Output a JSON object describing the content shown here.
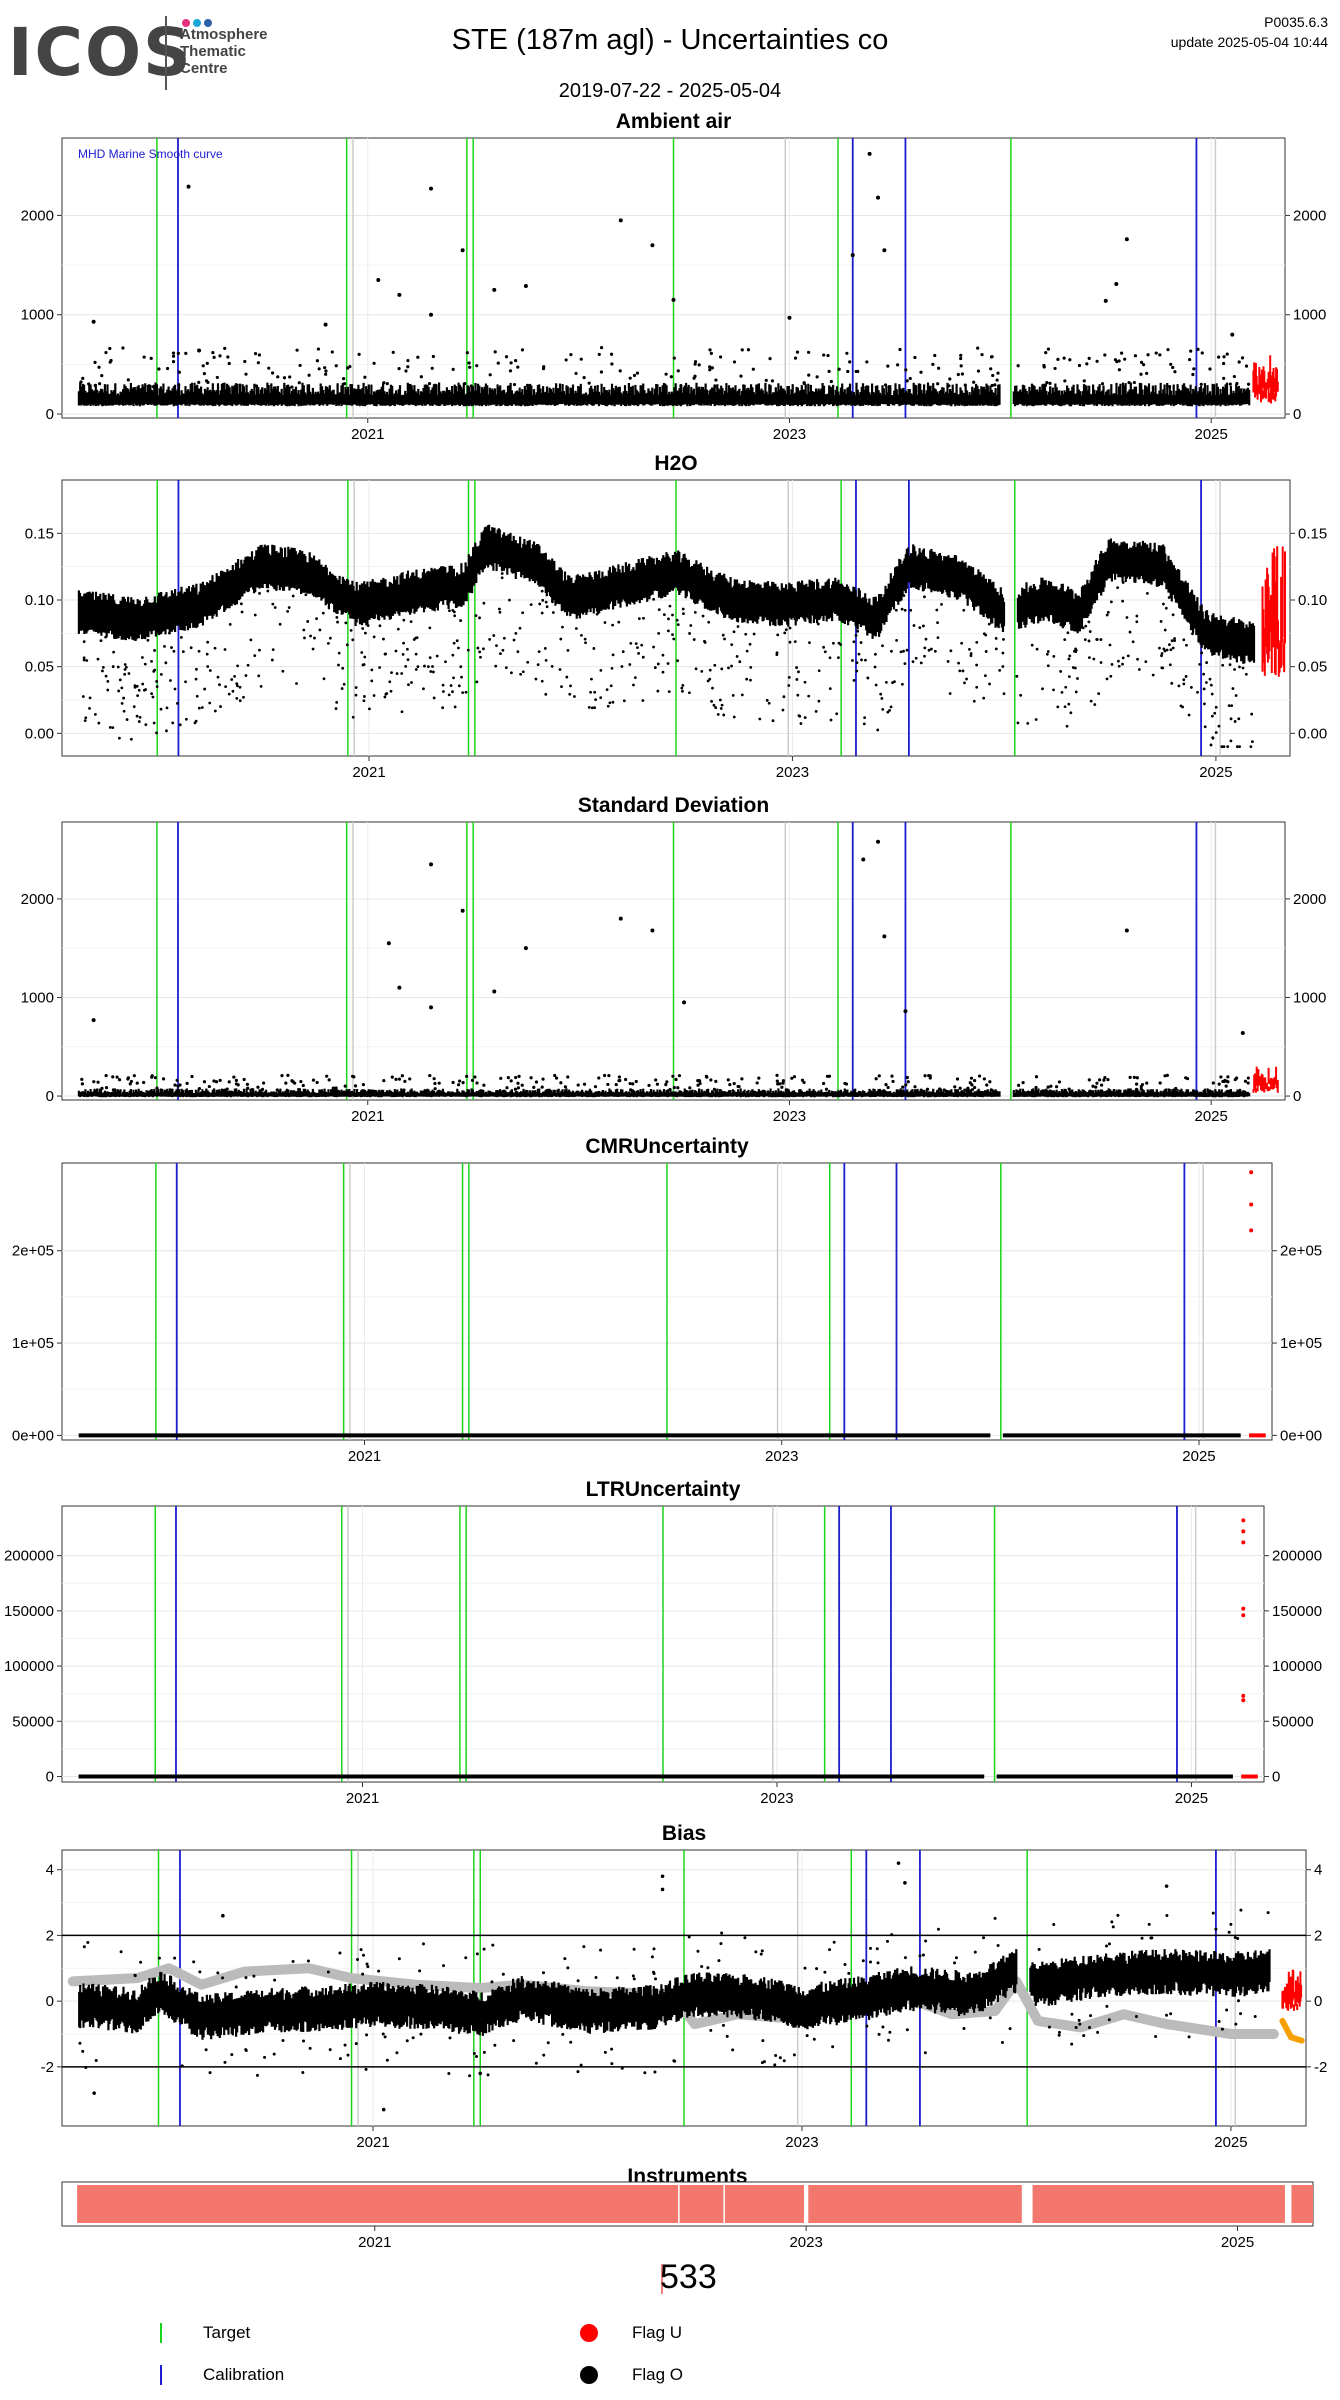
{
  "header": {
    "logo_text": "ICOS",
    "logo_sub": [
      "Atmosphere",
      "Thematic",
      "Centre"
    ],
    "title": "STE  (187m agl) - Uncertainties co",
    "date_range": "2019-07-22 - 2025-05-04",
    "code": "P0035.6.3",
    "update": "update  2025-05-04 10:44",
    "dot_colors": [
      "#e6317e",
      "#1aa7d9",
      "#2b5fa8"
    ]
  },
  "chart_data": [
    {
      "type": "scatter",
      "title": "Ambient air",
      "annotation": "MHD Marine Smooth curve",
      "xlim": [
        2019.55,
        2025.35
      ],
      "ylim": [
        -40,
        2780
      ],
      "yticks": [
        0,
        1000,
        2000
      ],
      "ytick_labels": [
        "0",
        "1000",
        "2000"
      ],
      "xticks": [
        2021,
        2023,
        2025
      ],
      "baseline": 150,
      "noise": 80,
      "spikes": [
        [
          2019.7,
          930
        ],
        [
          2020.15,
          2290
        ],
        [
          2020.2,
          640
        ],
        [
          2020.8,
          900
        ],
        [
          2021.05,
          1350
        ],
        [
          2021.15,
          1200
        ],
        [
          2021.3,
          1000
        ],
        [
          2021.3,
          2270
        ],
        [
          2021.45,
          1650
        ],
        [
          2021.6,
          1250
        ],
        [
          2021.75,
          1290
        ],
        [
          2022.2,
          1950
        ],
        [
          2022.35,
          1700
        ],
        [
          2022.45,
          1150
        ],
        [
          2023.0,
          970
        ],
        [
          2023.3,
          1600
        ],
        [
          2023.38,
          2620
        ],
        [
          2023.42,
          2180
        ],
        [
          2023.45,
          1650
        ],
        [
          2024.6,
          1760
        ],
        [
          2024.55,
          1310
        ],
        [
          2024.5,
          1140
        ],
        [
          2025.1,
          800
        ]
      ],
      "red_region": [
        2025.2,
        2025.32,
        50,
        600
      ],
      "gaps": [
        [
          2024.0,
          2024.06
        ]
      ],
      "series": [
        {
          "values": []
        }
      ]
    },
    {
      "type": "scatter",
      "title": "H2O",
      "xlim": [
        2019.55,
        2025.35
      ],
      "ylim": [
        -0.017,
        0.19
      ],
      "yticks": [
        0,
        0.05,
        0.1,
        0.15
      ],
      "ytick_labels": [
        "0.00",
        "0.05",
        "0.10",
        "0.15"
      ],
      "xticks": [
        2021,
        2023,
        2025
      ],
      "curve": [
        [
          2019.6,
          0.09
        ],
        [
          2019.9,
          0.085
        ],
        [
          2020.2,
          0.095
        ],
        [
          2020.5,
          0.125
        ],
        [
          2020.7,
          0.12
        ],
        [
          2020.95,
          0.095
        ],
        [
          2021.2,
          0.105
        ],
        [
          2021.45,
          0.11
        ],
        [
          2021.55,
          0.14
        ],
        [
          2021.8,
          0.125
        ],
        [
          2021.95,
          0.1
        ],
        [
          2022.2,
          0.11
        ],
        [
          2022.45,
          0.12
        ],
        [
          2022.7,
          0.1
        ],
        [
          2022.95,
          0.095
        ],
        [
          2023.2,
          0.1
        ],
        [
          2023.4,
          0.085
        ],
        [
          2023.55,
          0.125
        ],
        [
          2023.8,
          0.115
        ],
        [
          2024.0,
          0.09
        ],
        [
          2024.2,
          0.1
        ],
        [
          2024.35,
          0.09
        ],
        [
          2024.5,
          0.13
        ],
        [
          2024.75,
          0.125
        ],
        [
          2024.95,
          0.075
        ],
        [
          2025.2,
          0.065
        ]
      ],
      "red_region": [
        2025.22,
        2025.33,
        0.03,
        0.15
      ],
      "gaps": [
        [
          2024.0,
          2024.06
        ]
      ],
      "series": [
        {
          "values": []
        }
      ]
    },
    {
      "type": "scatter",
      "title": "Standard Deviation",
      "xlim": [
        2019.55,
        2025.35
      ],
      "ylim": [
        -40,
        2780
      ],
      "yticks": [
        0,
        1000,
        2000
      ],
      "ytick_labels": [
        "0",
        "1000",
        "2000"
      ],
      "xticks": [
        2021,
        2023,
        2025
      ],
      "baseline": 15,
      "noise": 30,
      "spikes": [
        [
          2019.7,
          770
        ],
        [
          2021.1,
          1550
        ],
        [
          2021.15,
          1100
        ],
        [
          2021.3,
          2350
        ],
        [
          2021.45,
          1880
        ],
        [
          2021.3,
          900
        ],
        [
          2021.6,
          1060
        ],
        [
          2021.75,
          1500
        ],
        [
          2022.2,
          1800
        ],
        [
          2022.35,
          1680
        ],
        [
          2022.5,
          950
        ],
        [
          2023.35,
          2400
        ],
        [
          2023.42,
          2580
        ],
        [
          2023.45,
          1620
        ],
        [
          2023.55,
          860
        ],
        [
          2024.6,
          1680
        ],
        [
          2025.15,
          640
        ]
      ],
      "red_region": [
        2025.2,
        2025.32,
        0,
        330
      ],
      "gaps": [
        [
          2024.0,
          2024.06
        ]
      ],
      "series": [
        {
          "values": []
        }
      ]
    },
    {
      "type": "scatter",
      "title": "CMRUncertainty",
      "xlim": [
        2019.55,
        2025.35
      ],
      "ylim": [
        -5000,
        295000
      ],
      "yticks": [
        0,
        100000,
        200000
      ],
      "ytick_labels": [
        "0e+00",
        "1e+05",
        "2e+05"
      ],
      "xticks": [
        2021,
        2023,
        2025
      ],
      "flat": 0,
      "red_points": [
        [
          2025.25,
          285000
        ],
        [
          2025.25,
          250000
        ],
        [
          2025.25,
          222000
        ]
      ],
      "red_flat": [
        2025.24,
        2025.32
      ],
      "gaps": [
        [
          2024.0,
          2024.06
        ]
      ],
      "series": [
        {
          "values": []
        }
      ]
    },
    {
      "type": "scatter",
      "title": "LTRUncertainty",
      "xlim": [
        2019.55,
        2025.35
      ],
      "ylim": [
        -5000,
        245000
      ],
      "yticks": [
        0,
        50000,
        100000,
        150000,
        200000
      ],
      "ytick_labels": [
        "0",
        "50000",
        "100000",
        "150000",
        "200000"
      ],
      "xticks": [
        2021,
        2023,
        2025
      ],
      "flat": 0,
      "red_points": [
        [
          2025.25,
          232000
        ],
        [
          2025.25,
          222000
        ],
        [
          2025.25,
          212000
        ],
        [
          2025.25,
          152000
        ],
        [
          2025.25,
          146000
        ],
        [
          2025.25,
          73000
        ],
        [
          2025.25,
          69000
        ]
      ],
      "red_flat": [
        2025.24,
        2025.32
      ],
      "gaps": [
        [
          2024.0,
          2024.06
        ]
      ],
      "series": [
        {
          "values": []
        }
      ]
    },
    {
      "type": "scatter",
      "title": "Bias",
      "xlim": [
        2019.55,
        2025.35
      ],
      "ylim": [
        -3.8,
        4.6
      ],
      "yticks": [
        -2,
        0,
        2,
        4
      ],
      "ytick_labels": [
        "-2",
        "0",
        "2",
        "4"
      ],
      "xticks": [
        2021,
        2023,
        2025
      ],
      "hlines": [
        -2,
        2
      ],
      "black_curve": [
        [
          2019.6,
          -0.1
        ],
        [
          2019.9,
          -0.3
        ],
        [
          2020.0,
          0.3
        ],
        [
          2020.2,
          -0.5
        ],
        [
          2020.5,
          -0.3
        ],
        [
          2020.8,
          -0.2
        ],
        [
          2021.0,
          -0.1
        ],
        [
          2021.3,
          -0.2
        ],
        [
          2021.5,
          -0.4
        ],
        [
          2021.7,
          0.1
        ],
        [
          2022.0,
          -0.3
        ],
        [
          2022.3,
          -0.2
        ],
        [
          2022.5,
          0.2
        ],
        [
          2022.8,
          0.1
        ],
        [
          2023.0,
          -0.2
        ],
        [
          2023.3,
          0.1
        ],
        [
          2023.5,
          0.4
        ],
        [
          2023.8,
          0.2
        ],
        [
          2024.0,
          0.9
        ],
        [
          2024.1,
          0.5
        ],
        [
          2024.4,
          0.8
        ],
        [
          2024.7,
          0.9
        ],
        [
          2025.0,
          0.8
        ],
        [
          2025.15,
          0.9
        ]
      ],
      "grey_curve": [
        [
          2019.6,
          0.6
        ],
        [
          2019.9,
          0.7
        ],
        [
          2020.05,
          1.0
        ],
        [
          2020.2,
          0.5
        ],
        [
          2020.4,
          0.9
        ],
        [
          2020.7,
          1.0
        ],
        [
          2020.9,
          0.7
        ],
        [
          2021.2,
          0.5
        ],
        [
          2021.5,
          0.4
        ],
        [
          2021.7,
          0.5
        ],
        [
          2022.0,
          0.3
        ],
        [
          2022.4,
          0.2
        ],
        [
          2022.5,
          -0.7
        ],
        [
          2022.7,
          -0.4
        ],
        [
          2022.9,
          -0.5
        ],
        [
          2023.2,
          -0.2
        ],
        [
          2023.4,
          0.3
        ],
        [
          2023.7,
          -0.4
        ],
        [
          2023.9,
          -0.3
        ],
        [
          2024.0,
          0.6
        ],
        [
          2024.1,
          -0.6
        ],
        [
          2024.3,
          -0.8
        ],
        [
          2024.5,
          -0.4
        ],
        [
          2024.7,
          -0.7
        ],
        [
          2025.0,
          -1.0
        ],
        [
          2025.2,
          -1.0
        ]
      ],
      "red_region": [
        2025.24,
        2025.33,
        -0.5,
        1.2
      ],
      "orange_curve": [
        [
          2025.24,
          -0.6
        ],
        [
          2025.28,
          -1.1
        ],
        [
          2025.33,
          -1.2
        ]
      ],
      "gaps": [
        [
          2024.0,
          2024.06
        ]
      ],
      "series": [
        {
          "values": []
        }
      ]
    }
  ],
  "instruments": {
    "title": "Instruments",
    "xlim": [
      2019.55,
      2025.35
    ],
    "xticks": [
      2021,
      2023,
      2025
    ],
    "bars": [
      [
        2019.62,
        2022.99
      ],
      [
        2023.01,
        2024.0
      ],
      [
        2024.05,
        2025.22
      ],
      [
        2025.25,
        2025.35
      ]
    ],
    "separators": [
      2022.41,
      2022.62
    ],
    "color": "#f4776d"
  },
  "count": "533",
  "legend": {
    "target": "Target",
    "calibration": "Calibration",
    "flag_u": "Flag U",
    "flag_o": "Flag O",
    "target_color": "#1bd51b",
    "calibration_color": "#1c1cd0",
    "flag_u_color": "#ff0000",
    "flag_o_color": "#000000"
  },
  "vlines": {
    "green": [
      2020.0,
      2020.9,
      2021.47,
      2021.5,
      2022.45,
      2023.23
    ],
    "green_late": [
      2024.05
    ],
    "blue": [
      2020.1,
      2023.3,
      2023.55,
      2024.93
    ],
    "grey": [
      2020.93,
      2022.98,
      2025.02
    ]
  }
}
